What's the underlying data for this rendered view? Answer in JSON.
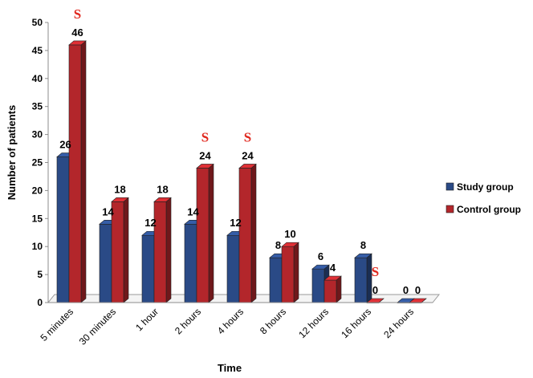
{
  "chart_data": {
    "type": "bar",
    "categories": [
      "5 minutes",
      "30 minutes",
      "1 hour",
      "2 hours",
      "4 hours",
      "8 hours",
      "12 hours",
      "16 hours",
      "24 hours"
    ],
    "series": [
      {
        "name": "Study group",
        "values": [
          26,
          14,
          12,
          14,
          12,
          8,
          6,
          8,
          0
        ],
        "color": "#2a4a86"
      },
      {
        "name": "Control group",
        "values": [
          46,
          18,
          18,
          24,
          24,
          10,
          4,
          0,
          0
        ],
        "color": "#b3262b"
      }
    ],
    "significance_marker": "S",
    "significant_categories": [
      "5 minutes",
      "2 hours",
      "4 hours",
      "16 hours"
    ],
    "xlabel": "Time",
    "ylabel": "Number of patients",
    "ylim": [
      0,
      50
    ],
    "yticks": [
      0,
      5,
      10,
      15,
      20,
      25,
      30,
      35,
      40,
      45,
      50
    ],
    "grid": false,
    "legend_position": "right",
    "style": "3d-bar"
  }
}
